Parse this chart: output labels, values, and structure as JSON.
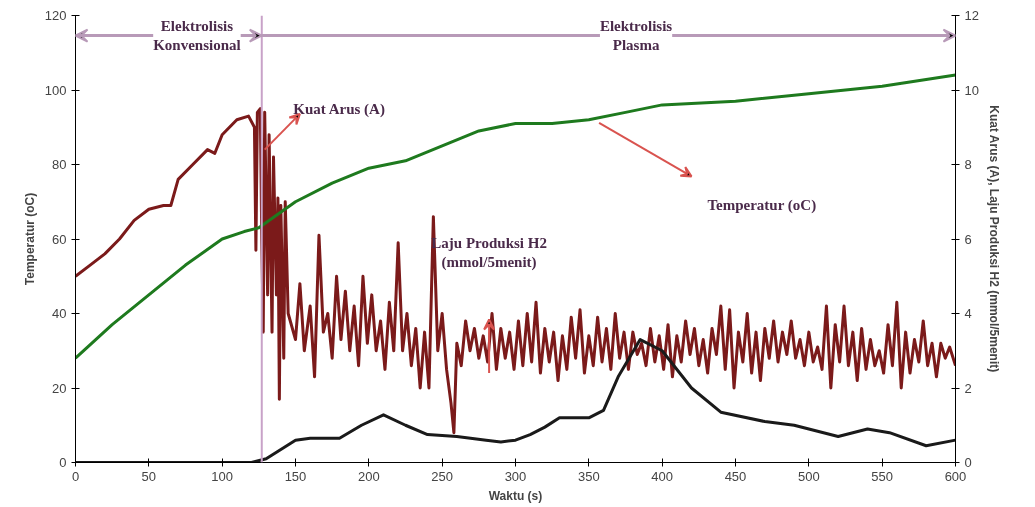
{
  "chart_data": {
    "type": "line",
    "xlabel": "Waktu (s)",
    "ylabel": "Temperatur (oC)",
    "y2label": "Kuat Arus (A), Laju Produksi H2 (mmol/5menit)",
    "xlim": [
      0,
      600
    ],
    "xticks": [
      0,
      50,
      100,
      150,
      200,
      250,
      300,
      350,
      400,
      450,
      500,
      550,
      600
    ],
    "ylim": [
      0,
      120
    ],
    "yticks": [
      0,
      20,
      40,
      60,
      80,
      100,
      120
    ],
    "y2lim": [
      0,
      12
    ],
    "y2ticks": [
      0,
      2,
      4,
      6,
      8,
      10,
      12
    ],
    "grid": false,
    "marker": "none",
    "line_style": "solid",
    "series": [
      {
        "color": "#7b1a1a",
        "axis": "y2",
        "x": [
          0,
          10,
          20,
          30,
          40,
          50,
          60,
          65,
          70,
          80,
          90,
          95,
          100,
          110,
          118,
          122,
          123,
          124,
          126,
          127,
          128,
          129,
          131,
          132,
          134,
          135,
          137,
          138,
          139,
          140,
          142,
          143,
          145,
          150,
          153,
          156,
          160,
          163,
          166,
          169,
          172,
          175,
          178,
          181,
          184,
          187,
          190,
          193,
          196,
          199,
          202,
          205,
          208,
          211,
          214,
          217,
          220,
          223,
          226,
          229,
          232,
          235,
          238,
          241,
          244,
          247,
          250,
          253,
          256,
          258,
          260,
          263,
          266,
          269,
          272,
          275,
          278,
          281,
          284,
          287,
          290,
          293,
          296,
          299,
          302,
          305,
          308,
          311,
          314,
          317,
          320,
          323,
          326,
          329,
          332,
          335,
          338,
          341,
          344,
          347,
          350,
          353,
          356,
          359,
          362,
          365,
          368,
          371,
          374,
          377,
          380,
          383,
          386,
          389,
          392,
          395,
          398,
          401,
          404,
          407,
          410,
          413,
          416,
          419,
          422,
          425,
          428,
          431,
          434,
          437,
          440,
          443,
          446,
          449,
          452,
          455,
          458,
          461,
          464,
          467,
          470,
          473,
          476,
          479,
          482,
          485,
          488,
          491,
          494,
          497,
          500,
          503,
          506,
          509,
          512,
          515,
          518,
          521,
          524,
          527,
          530,
          533,
          536,
          539,
          542,
          545,
          548,
          551,
          554,
          557,
          560,
          563,
          566,
          569,
          572,
          575,
          578,
          581,
          584,
          587,
          590,
          593,
          596,
          600
        ],
        "values": [
          5.0,
          5.3,
          5.6,
          6.0,
          6.5,
          6.8,
          6.9,
          6.9,
          7.6,
          8.0,
          8.4,
          8.3,
          8.8,
          9.2,
          9.3,
          9.0,
          5.7,
          9.4,
          9.5,
          6.0,
          3.5,
          9.4,
          4.5,
          8.8,
          3.5,
          8.2,
          4.5,
          7.1,
          1.7,
          6.9,
          2.8,
          7.0,
          4.0,
          3.3,
          4.8,
          3.0,
          4.2,
          2.3,
          6.1,
          3.5,
          4.0,
          2.8,
          5.0,
          3.3,
          4.6,
          3.0,
          4.2,
          2.6,
          5.0,
          3.2,
          4.5,
          3.0,
          3.8,
          2.5,
          4.3,
          3.0,
          5.9,
          3.0,
          4.0,
          2.6,
          3.6,
          2.0,
          3.5,
          2.0,
          6.6,
          3.0,
          4.0,
          2.5,
          1.6,
          0.8,
          3.2,
          2.6,
          3.8,
          3.0,
          3.6,
          2.8,
          3.4,
          2.7,
          4.0,
          2.5,
          3.6,
          2.8,
          3.5,
          2.5,
          3.8,
          2.6,
          4.0,
          2.7,
          4.3,
          2.4,
          3.6,
          2.7,
          3.5,
          2.2,
          3.4,
          2.5,
          3.9,
          2.8,
          4.1,
          2.4,
          3.4,
          2.6,
          3.9,
          2.7,
          3.6,
          2.5,
          4.0,
          2.8,
          3.5,
          2.5,
          3.5,
          2.9,
          3.2,
          2.6,
          3.6,
          2.7,
          3.4,
          2.5,
          3.7,
          2.3,
          3.4,
          2.7,
          3.8,
          2.9,
          3.6,
          2.6,
          3.3,
          2.4,
          3.6,
          2.9,
          4.2,
          2.5,
          4.1,
          2.0,
          3.5,
          2.7,
          4.0,
          2.4,
          3.5,
          2.2,
          3.6,
          2.8,
          3.8,
          2.7,
          3.5,
          2.9,
          3.8,
          2.8,
          3.3,
          2.6,
          3.5,
          2.7,
          3.1,
          2.5,
          4.2,
          2.0,
          3.7,
          2.7,
          4.2,
          2.6,
          3.5,
          2.2,
          3.6,
          2.5,
          3.3,
          2.6,
          3.0,
          2.4,
          3.7,
          2.6,
          4.3,
          2.0,
          3.5,
          2.4,
          3.3,
          2.7,
          3.8,
          2.6,
          3.2,
          2.3,
          3.2,
          2.8,
          3.1,
          2.6
        ]
      },
      {
        "color": "#1e7a1e",
        "x": [
          0,
          25,
          50,
          75,
          100,
          115,
          125,
          150,
          175,
          200,
          225,
          250,
          275,
          300,
          325,
          350,
          375,
          400,
          450,
          500,
          550,
          600
        ],
        "values": [
          28,
          37,
          45,
          53,
          60,
          62,
          63,
          70,
          75,
          79,
          81,
          85,
          89,
          91,
          91,
          92,
          94,
          96,
          97,
          99,
          101,
          104
        ]
      },
      {
        "color": "#1a1a1a",
        "axis": "y2",
        "x": [
          0,
          50,
          100,
          120,
          130,
          140,
          150,
          160,
          180,
          195,
          210,
          225,
          240,
          260,
          280,
          290,
          300,
          310,
          320,
          330,
          350,
          360,
          370,
          385,
          400,
          420,
          440,
          470,
          490,
          520,
          540,
          555,
          580,
          600
        ],
        "values": [
          0,
          0,
          0,
          0,
          0.1,
          0.35,
          0.6,
          0.65,
          0.65,
          1.0,
          1.28,
          1.0,
          0.75,
          0.7,
          0.6,
          0.55,
          0.6,
          0.75,
          0.95,
          1.2,
          1.2,
          1.4,
          2.3,
          3.3,
          3.0,
          2.0,
          1.35,
          1.1,
          1.0,
          0.7,
          0.9,
          0.8,
          0.45,
          0.6
        ]
      }
    ],
    "ref_lines": [
      {
        "axis": "x",
        "value": 127,
        "color": "#c8a2c8"
      }
    ],
    "annotations": [
      "Elektrolisis\nKonvensional",
      "Elektrolisis\nPlasma",
      "Kuat Arus (A)",
      "Laju Produksi H2\n(mmol/5menit)",
      "Temperatur (oC)"
    ]
  }
}
